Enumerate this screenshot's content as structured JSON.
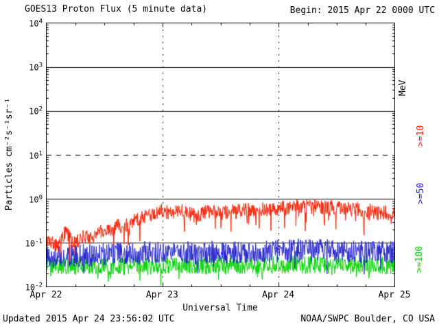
{
  "header": {
    "title": "GOES13 Proton Flux (5 minute data)",
    "begin": "Begin: 2015 Apr 22 0000 UTC"
  },
  "footer": {
    "updated": "Updated 2015 Apr 24 23:56:02 UTC",
    "credit": "NOAA/SWPC Boulder, CO USA"
  },
  "chart_data": {
    "type": "line",
    "title": "GOES13 Proton Flux (5 minute data)",
    "xlabel": "Universal Time",
    "ylabel": "Particles cm⁻²s⁻¹sr⁻¹",
    "right_axis_unit": "MeV",
    "x_range_hours": [
      0,
      72
    ],
    "x_tick_labels": [
      "Apr 22",
      "Apr 23",
      "Apr 24",
      "Apr 25"
    ],
    "ylog_range": [
      -2,
      4
    ],
    "y_ticks": [
      4,
      3,
      2,
      1,
      0,
      -1,
      -2
    ],
    "threshold_exp": 1,
    "grid": {
      "horizontal": "solid each decade",
      "threshold": "dashed at 10^1",
      "vertical": "dotted at day boundaries"
    },
    "axis_color": "#000000",
    "series": [
      {
        "label": ">=10",
        "name": ">=10 MeV proton flux",
        "color": "#ff1e00",
        "noise_log": 0.16,
        "dip_prob": 0.07,
        "dip_depth": 0.5,
        "hourly_flux": [
          0.12,
          0.1,
          0.09,
          0.11,
          0.18,
          0.12,
          0.1,
          0.12,
          0.15,
          0.13,
          0.15,
          0.18,
          0.2,
          0.18,
          0.22,
          0.25,
          0.22,
          0.28,
          0.32,
          0.35,
          0.38,
          0.4,
          0.45,
          0.5,
          0.55,
          0.5,
          0.45,
          0.5,
          0.55,
          0.5,
          0.45,
          0.4,
          0.45,
          0.5,
          0.55,
          0.5,
          0.45,
          0.5,
          0.55,
          0.5,
          0.55,
          0.6,
          0.55,
          0.5,
          0.55,
          0.6,
          0.55,
          0.6,
          0.6,
          0.65,
          0.6,
          0.65,
          0.7,
          0.65,
          0.7,
          0.72,
          0.7,
          0.65,
          0.7,
          0.65,
          0.6,
          0.65,
          0.6,
          0.55,
          0.6,
          0.55,
          0.5,
          0.55,
          0.5,
          0.45,
          0.5,
          0.45,
          0.5
        ]
      },
      {
        "label": ">=50",
        "name": ">=50 MeV proton flux",
        "color": "#2424cc",
        "noise_log": 0.26,
        "dip_prob": 0.05,
        "dip_depth": 0.35,
        "hourly_flux": [
          0.05,
          0.048,
          0.05,
          0.052,
          0.05,
          0.048,
          0.05,
          0.052,
          0.055,
          0.05,
          0.052,
          0.055,
          0.055,
          0.052,
          0.055,
          0.058,
          0.055,
          0.058,
          0.06,
          0.058,
          0.06,
          0.062,
          0.06,
          0.062,
          0.062,
          0.06,
          0.058,
          0.06,
          0.062,
          0.06,
          0.058,
          0.056,
          0.058,
          0.06,
          0.062,
          0.06,
          0.058,
          0.06,
          0.062,
          0.06,
          0.062,
          0.064,
          0.062,
          0.06,
          0.062,
          0.064,
          0.062,
          0.064,
          0.065,
          0.066,
          0.065,
          0.066,
          0.068,
          0.066,
          0.068,
          0.07,
          0.068,
          0.066,
          0.068,
          0.066,
          0.065,
          0.066,
          0.065,
          0.064,
          0.065,
          0.064,
          0.062,
          0.064,
          0.062,
          0.06,
          0.062,
          0.06,
          0.062
        ]
      },
      {
        "label": ">=100",
        "name": ">=100 MeV proton flux",
        "color": "#00d400",
        "noise_log": 0.2,
        "dip_prob": 0.05,
        "dip_depth": 0.3,
        "hourly_flux": [
          0.03,
          0.029,
          0.03,
          0.031,
          0.03,
          0.029,
          0.03,
          0.031,
          0.03,
          0.029,
          0.03,
          0.031,
          0.03,
          0.029,
          0.03,
          0.031,
          0.03,
          0.031,
          0.032,
          0.031,
          0.032,
          0.031,
          0.03,
          0.031,
          0.031,
          0.03,
          0.031,
          0.032,
          0.031,
          0.03,
          0.031,
          0.032,
          0.031,
          0.03,
          0.031,
          0.032,
          0.031,
          0.03,
          0.031,
          0.032,
          0.031,
          0.032,
          0.031,
          0.03,
          0.031,
          0.032,
          0.031,
          0.032,
          0.032,
          0.031,
          0.032,
          0.033,
          0.032,
          0.031,
          0.032,
          0.033,
          0.032,
          0.031,
          0.032,
          0.031,
          0.032,
          0.031,
          0.03,
          0.031,
          0.032,
          0.031,
          0.03,
          0.031,
          0.03,
          0.031,
          0.03,
          0.031,
          0.032
        ]
      }
    ]
  }
}
